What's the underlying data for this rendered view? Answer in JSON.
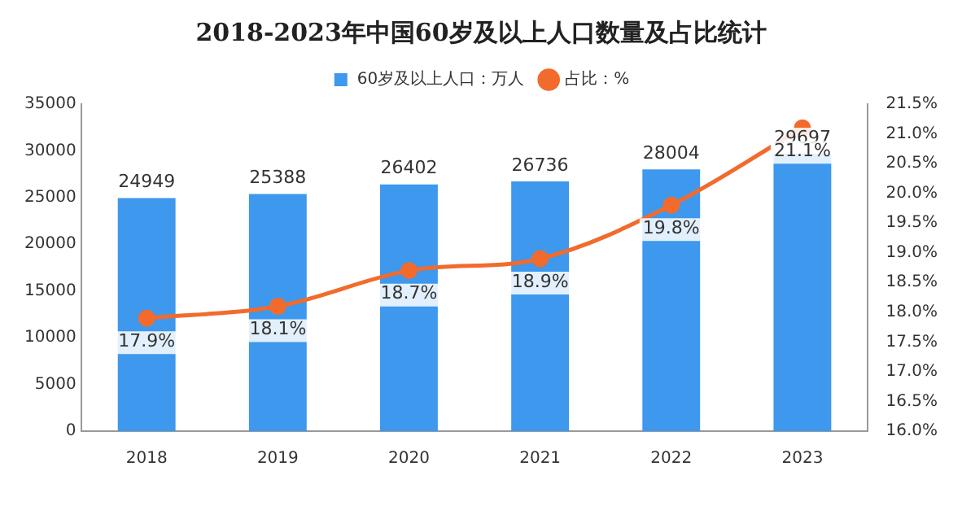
{
  "chart_data": {
    "type": "bar",
    "title": "2018-2023年中国60岁及以上人口数量及占比统计",
    "categories": [
      "2018",
      "2019",
      "2020",
      "2021",
      "2022",
      "2023"
    ],
    "series": [
      {
        "name": "60岁及以上人口：万人",
        "color": "#3d98ee",
        "values": [
          24949,
          25388,
          26402,
          26736,
          28004,
          29697
        ]
      },
      {
        "name": "占比：%",
        "type": "line",
        "axis": "y2",
        "color": "#f26b2c",
        "marker": "circle",
        "values": [
          17.9,
          18.1,
          18.7,
          18.9,
          19.8,
          21.1
        ],
        "value_labels": [
          "17.9%",
          "18.1%",
          "18.7%",
          "18.9%",
          "19.8%",
          "21.1%"
        ]
      }
    ],
    "ylim": [
      0,
      35000
    ],
    "yticks": [
      0,
      5000,
      10000,
      15000,
      20000,
      25000,
      30000,
      35000
    ],
    "y2lim": [
      16,
      21.5
    ],
    "y2ticks": [
      {
        "value": 16,
        "label": "16.0%"
      },
      {
        "value": 16.5,
        "label": "16.5%"
      },
      {
        "value": 17,
        "label": "17.0%"
      },
      {
        "value": 17.5,
        "label": "17.5%"
      },
      {
        "value": 18,
        "label": "18.0%"
      },
      {
        "value": 18.5,
        "label": "18.5%"
      },
      {
        "value": 19,
        "label": "19.0%"
      },
      {
        "value": 19.5,
        "label": "19.5%"
      },
      {
        "value": 20,
        "label": "20.0%"
      },
      {
        "value": 20.5,
        "label": "20.5%"
      },
      {
        "value": 21,
        "label": "21.0%"
      },
      {
        "value": 21.5,
        "label": "21.5%"
      }
    ],
    "data_labels": true,
    "grid": false,
    "legend": "top"
  }
}
